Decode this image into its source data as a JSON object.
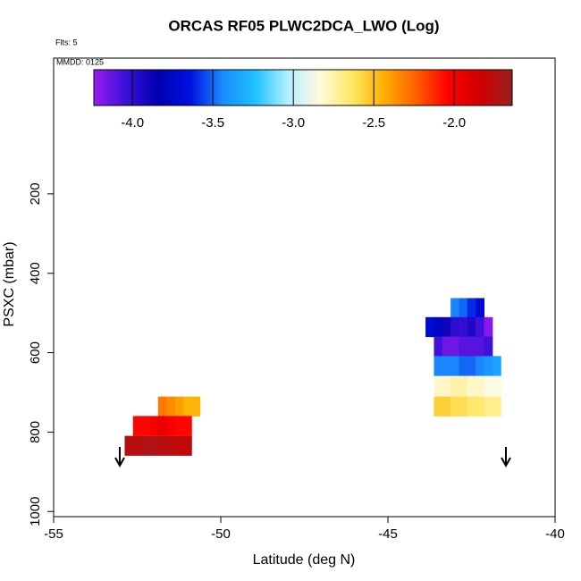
{
  "chart_data": {
    "type": "heatmap",
    "title": "ORCAS RF05 PLWC2DCA_LWO (Log)",
    "subtitle": "Flts: 5",
    "annotation": "MMDD: 0125",
    "x_label": "Latitude (deg N)",
    "y_label": "PSXC (mbar)",
    "xlim": [
      -55,
      -40
    ],
    "xticks": [
      -55,
      -50,
      -45,
      -40
    ],
    "ylim": [
      1013,
      -142
    ],
    "yticks": [
      200,
      400,
      600,
      800,
      1000
    ],
    "colorbar": {
      "range": [
        -4.24,
        -1.64
      ],
      "ticks": [
        {
          "value": -4,
          "label": "-4.0"
        },
        {
          "value": -3.5,
          "label": "-3.5"
        },
        {
          "value": -3,
          "label": "-3.0"
        },
        {
          "value": -2.5,
          "label": "-2.5"
        },
        {
          "value": -2,
          "label": "-2.0"
        }
      ],
      "colormap": [
        "#9a1cf0",
        "#3a10d8",
        "#0000b0",
        "#0010e0",
        "#1a8cff",
        "#1ec0ff",
        "#b0eeff",
        "#fffbe0",
        "#ffe866",
        "#ffb000",
        "#ff6000",
        "#ff0000",
        "#d00000",
        "#9a2020"
      ]
    },
    "cells": {
      "x": [
        -51.75,
        -51.5,
        -51.25,
        -51,
        -50.75,
        -52.5,
        -52.25,
        -52,
        -51.75,
        -51.5,
        -51.25,
        -51,
        -52.75,
        -52.5,
        -52.25,
        -52,
        -51.75,
        -51.5,
        -51.25,
        -51,
        -43,
        -42.75,
        -42.5,
        -42.25,
        -43.75,
        -43.5,
        -43.25,
        -43,
        -42.75,
        -42.5,
        -42.25,
        -42,
        -43.5,
        -43.25,
        -43,
        -42.75,
        -42.5,
        -42.25,
        -42,
        -43.5,
        -43.25,
        -43,
        -42.75,
        -42.5,
        -42.25,
        -42,
        -41.75,
        -43.5,
        -43.25,
        -43,
        -42.75,
        -42.5,
        -42.25,
        -42,
        -41.75,
        -43.5,
        -43.25,
        -43,
        -42.75,
        -42.5,
        -42.25,
        -42,
        -41.75
      ],
      "y": [
        735,
        735,
        735,
        735,
        735,
        784,
        784,
        784,
        784,
        784,
        784,
        784,
        834,
        834,
        834,
        834,
        834,
        834,
        834,
        834,
        487,
        487,
        487,
        487,
        535,
        535,
        535,
        535,
        535,
        535,
        535,
        535,
        584,
        584,
        584,
        584,
        584,
        584,
        584,
        633,
        633,
        633,
        633,
        633,
        633,
        633,
        633,
        685,
        685,
        685,
        685,
        685,
        685,
        685,
        685,
        735,
        735,
        735,
        735,
        735,
        735,
        735,
        735
      ],
      "values": [
        -2.3,
        -2.35,
        -2.4,
        -2.45,
        -2.45,
        -2.05,
        -2.05,
        -2.0,
        -1.95,
        -2.0,
        -2.05,
        -2.05,
        -1.75,
        -1.75,
        -1.72,
        -1.72,
        -1.75,
        -1.75,
        -1.78,
        -1.78,
        -3.45,
        -3.5,
        -3.6,
        -3.7,
        -3.7,
        -3.75,
        -3.9,
        -4.0,
        -4.02,
        -3.95,
        -4.05,
        -4.2,
        -4.05,
        -4.15,
        -4.15,
        -4.1,
        -4.1,
        -4.1,
        -4.05,
        -3.45,
        -3.45,
        -3.45,
        -3.5,
        -3.5,
        -3.45,
        -3.4,
        -3.35,
        -2.8,
        -2.8,
        -2.75,
        -2.75,
        -2.8,
        -2.8,
        -2.85,
        -2.85,
        -2.55,
        -2.55,
        -2.6,
        -2.6,
        -2.65,
        -2.65,
        -2.7,
        -2.7
      ]
    }
  }
}
